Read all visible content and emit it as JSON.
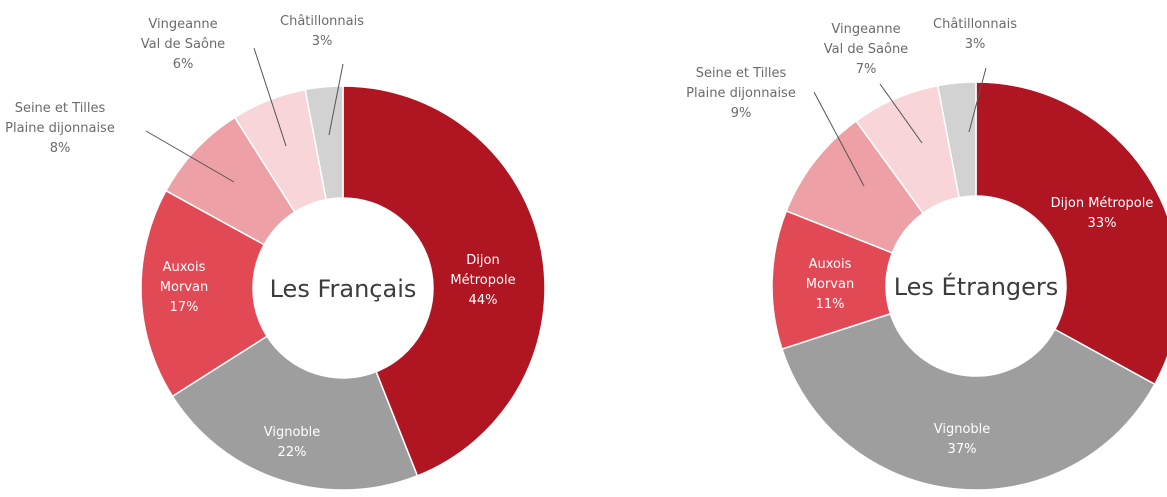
{
  "chart_data": [
    {
      "type": "pie",
      "title": "Les Français",
      "slices": [
        {
          "name_lines": [
            "Dijon",
            "Métropole"
          ],
          "pct_label": "44%",
          "value": 44,
          "color": "#b01522"
        },
        {
          "name_lines": [
            "Vignoble"
          ],
          "pct_label": "22%",
          "value": 22,
          "color": "#9e9e9e"
        },
        {
          "name_lines": [
            "Auxois",
            "Morvan"
          ],
          "pct_label": "17%",
          "value": 17,
          "color": "#e14a55"
        },
        {
          "name_lines": [
            "Seine et Tilles",
            "Plaine dijonnaise"
          ],
          "pct_label": "8%",
          "value": 8,
          "color": "#eda0a6"
        },
        {
          "name_lines": [
            "Vingeanne",
            "Val de Saône"
          ],
          "pct_label": "6%",
          "value": 6,
          "color": "#f8d5d8"
        },
        {
          "name_lines": [
            "Châtillonnais"
          ],
          "pct_label": "3%",
          "value": 3,
          "color": "#d2d2d2"
        }
      ]
    },
    {
      "type": "pie",
      "title": "Les Étrangers",
      "slices": [
        {
          "name_lines": [
            "Dijon Métropole"
          ],
          "pct_label": "33%",
          "value": 33,
          "color": "#b01522"
        },
        {
          "name_lines": [
            "Vignoble"
          ],
          "pct_label": "37%",
          "value": 37,
          "color": "#9e9e9e"
        },
        {
          "name_lines": [
            "Auxois",
            "Morvan"
          ],
          "pct_label": "11%",
          "value": 11,
          "color": "#e14a55"
        },
        {
          "name_lines": [
            "Seine et Tilles",
            "Plaine dijonnaise"
          ],
          "pct_label": "9%",
          "value": 9,
          "color": "#eda0a6"
        },
        {
          "name_lines": [
            "Vingeanne",
            "Val de Saône"
          ],
          "pct_label": "7%",
          "value": 7,
          "color": "#f8d5d8"
        },
        {
          "name_lines": [
            "Châtillonnais"
          ],
          "pct_label": "3%",
          "value": 3,
          "color": "#d2d2d2"
        }
      ]
    }
  ]
}
